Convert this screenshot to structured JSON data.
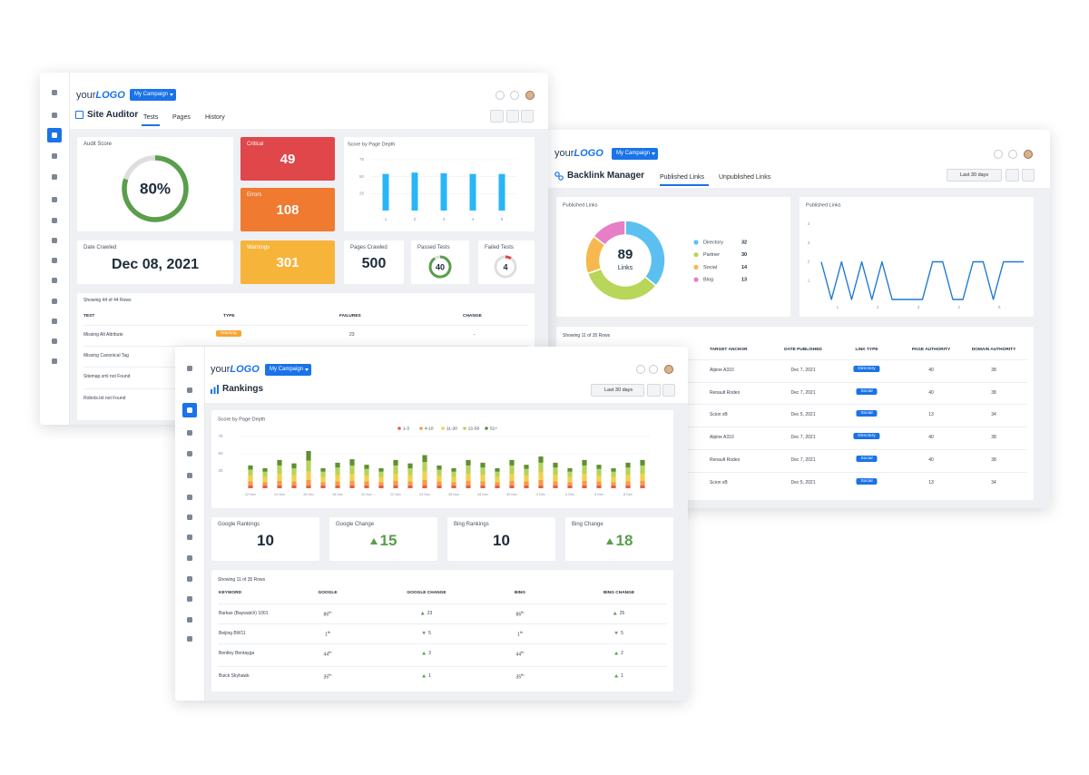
{
  "app": {
    "logo_prefix": "your",
    "logo_brand": "LOGO",
    "campaign": "My Campaign"
  },
  "site_auditor": {
    "title": "Site Auditor",
    "tabs": [
      "Tests",
      "Pages",
      "History"
    ],
    "audit_score": {
      "label": "Audit Score",
      "value": 80,
      "value_label": "80%"
    },
    "critical": {
      "label": "Critical",
      "value": 49
    },
    "errors": {
      "label": "Errors",
      "value": 108
    },
    "warnings": {
      "label": "Warnings",
      "value": 301
    },
    "date_crawled": {
      "label": "Date Crawled",
      "value": "Dec 08, 2021"
    },
    "pages_crawled": {
      "label": "Pages Crawled",
      "value": 500
    },
    "passed_tests": {
      "label": "Passed Tests",
      "value": 40
    },
    "failed_tests": {
      "label": "Failed Tests",
      "value": 4
    },
    "table": {
      "caption": "Showing 44 of 44 Rows",
      "columns": [
        "TEST",
        "TYPE",
        "FAILURES",
        "CHANGE"
      ],
      "rows": [
        {
          "test": "Missing Alt Attribute",
          "type": "Warning",
          "failures": 23,
          "change": "-"
        },
        {
          "test": "Missing Canonical Tag"
        },
        {
          "test": "Sitemap.xml not Found"
        },
        {
          "test": "Robots.txt not Found"
        }
      ]
    }
  },
  "backlink_manager": {
    "title": "Backlink Manager",
    "tabs": [
      "Published Links",
      "Unpublished Links"
    ],
    "date_range": "Last 30 days",
    "table": {
      "caption": "Showing 11 of 35 Rows",
      "columns": [
        "TARGET ANCHOR",
        "DATE PUBLISHED",
        "LINK TYPE",
        "PAGE AUTHORITY",
        "DOMAIN AUTHORITY"
      ],
      "rows": [
        {
          "anchor": "Alpine A310",
          "date": "Dec 7, 2021",
          "type": "Directory",
          "page_authority": 40,
          "domain_authority": 38
        },
        {
          "anchor": "Renault Rodeo",
          "date": "Dec 7, 2021",
          "type": "Social",
          "page_authority": 40,
          "domain_authority": 38
        },
        {
          "anchor": "Scion xB",
          "date": "Dec 5, 2021",
          "type": "Social",
          "page_authority": 13,
          "domain_authority": 34
        },
        {
          "anchor": "Alpine A310",
          "date": "Dec 7, 2021",
          "type": "Directory",
          "page_authority": 40,
          "domain_authority": 38
        },
        {
          "anchor": "Renault Rodeo",
          "date": "Dec 7, 2021",
          "type": "Social",
          "page_authority": 40,
          "domain_authority": 38
        },
        {
          "anchor": "Scion xB",
          "date": "Dec 5, 2021",
          "type": "Social",
          "page_authority": 13,
          "domain_authority": 34
        }
      ]
    }
  },
  "rankings": {
    "title": "Rankings",
    "date_range": "Last 30 days",
    "stats": [
      {
        "label": "Google Rankings",
        "value": 10
      },
      {
        "label": "Google Change",
        "value": 15,
        "trend": "up"
      },
      {
        "label": "Bing Rankings",
        "value": 10
      },
      {
        "label": "Bing Change",
        "value": 18,
        "trend": "up"
      }
    ],
    "table": {
      "caption": "Showing 11 of 35 Rows",
      "columns": [
        "KEYWORD",
        "GOOGLE",
        "GOOGLE CHANGE",
        "BING",
        "BING CHANGE"
      ],
      "rows": [
        {
          "keyword": "Barkas (Baywatch) 1001",
          "google": 86,
          "google_suffix": "th",
          "google_change": 23,
          "google_trend": "up",
          "bing": 86,
          "bing_suffix": "th",
          "bing_change": 25,
          "bing_trend": "up"
        },
        {
          "keyword": "Beijing BW11",
          "google": 1,
          "google_suffix": "th",
          "google_change": 5,
          "google_trend": "down",
          "bing": 1,
          "bing_suffix": "th",
          "bing_change": 5,
          "bing_trend": "down"
        },
        {
          "keyword": "Bentley Bentayga",
          "google": 44,
          "google_suffix": "th",
          "google_change": 3,
          "google_trend": "up",
          "bing": 44,
          "bing_suffix": "th",
          "bing_change": 2,
          "bing_trend": "up"
        },
        {
          "keyword": "Buick Skyhawk",
          "google": 35,
          "google_suffix": "th",
          "google_change": 1,
          "google_trend": "up",
          "bing": 35,
          "bing_suffix": "th",
          "bing_change": 1,
          "bing_trend": "up"
        }
      ]
    }
  },
  "chart_data": [
    {
      "type": "bar",
      "title": "Score by Page Depth",
      "categories": [
        "1",
        "2",
        "3",
        "4",
        "5"
      ],
      "values": [
        54,
        56,
        55,
        54,
        54
      ],
      "color": "#29b6f6",
      "ylim": [
        0,
        75
      ],
      "yticks": [
        25,
        50,
        75
      ],
      "grid": true
    },
    {
      "type": "donut",
      "title": "Published Links",
      "categories": [
        "Directory",
        "Partner",
        "Social",
        "Blog"
      ],
      "values": [
        32,
        30,
        14,
        13
      ],
      "colors": [
        "#5bc0f0",
        "#b8d65a",
        "#f5b94f",
        "#e77fc7"
      ],
      "center_value": 89,
      "center_label": "Links"
    },
    {
      "type": "line",
      "title": "Published Links",
      "x": [
        0.6,
        0.85,
        1.1,
        1.35,
        1.6,
        1.85,
        2.1,
        2.35,
        2.6,
        2.85,
        3.1,
        3.35,
        3.6,
        3.85,
        4.1,
        4.35,
        4.6,
        4.85,
        5.1,
        5.35,
        5.6
      ],
      "values": [
        2,
        0,
        2,
        0,
        2,
        0,
        2,
        0,
        0,
        0,
        0,
        2,
        2,
        0,
        0,
        2,
        2,
        0,
        2,
        2,
        2
      ],
      "color": "#1f7ad1",
      "xlim": [
        0.6,
        5.6
      ],
      "xticks": [
        1,
        2,
        3,
        4,
        5
      ],
      "ylim": [
        0,
        4
      ],
      "yticks": [
        1,
        2,
        3,
        4
      ],
      "grid": false
    },
    {
      "type": "stacked_bar",
      "title": "Score by Page Depth",
      "categories": [
        "12 Nov",
        null,
        "14 Nov",
        null,
        "16 Nov",
        null,
        "18 Nov",
        null,
        "20 Nov",
        null,
        "22 Nov",
        null,
        "24 Nov",
        null,
        "26 Nov",
        null,
        "28 Nov",
        null,
        "30 Nov",
        null,
        "2 Dec",
        null,
        "4 Dec",
        null,
        "6 Dec",
        null,
        "8 Dec",
        null
      ],
      "series": [
        {
          "name": "1-3",
          "color": "#e95c44",
          "values": [
            4,
            4,
            4,
            4,
            4,
            4,
            4,
            4,
            4,
            4,
            4,
            4,
            4,
            4,
            4,
            4,
            4,
            4,
            4,
            4,
            4,
            4,
            4,
            4,
            4,
            4,
            4,
            4
          ]
        },
        {
          "name": "4-10",
          "color": "#f39c4a",
          "values": [
            6,
            5,
            7,
            6,
            8,
            5,
            6,
            7,
            6,
            5,
            7,
            6,
            8,
            6,
            5,
            7,
            6,
            5,
            7,
            6,
            8,
            6,
            5,
            7,
            6,
            5,
            6,
            7
          ]
        },
        {
          "name": "11-20",
          "color": "#f5cf4a",
          "values": [
            8,
            7,
            10,
            9,
            12,
            7,
            9,
            10,
            8,
            7,
            10,
            9,
            12,
            8,
            7,
            10,
            9,
            7,
            10,
            8,
            11,
            9,
            7,
            10,
            8,
            7,
            9,
            10
          ]
        },
        {
          "name": "21-50",
          "color": "#b7d35a",
          "values": [
            9,
            8,
            12,
            10,
            16,
            8,
            11,
            12,
            10,
            8,
            12,
            10,
            14,
            9,
            8,
            12,
            11,
            8,
            12,
            10,
            14,
            11,
            8,
            12,
            10,
            8,
            11,
            12
          ]
        },
        {
          "name": "51+",
          "color": "#5f8f33",
          "values": [
            6,
            5,
            8,
            7,
            14,
            5,
            7,
            9,
            6,
            5,
            8,
            7,
            10,
            6,
            5,
            8,
            7,
            5,
            8,
            6,
            9,
            7,
            5,
            8,
            6,
            5,
            7,
            8
          ]
        }
      ],
      "ylim": [
        0,
        75
      ],
      "yticks": [
        25,
        50,
        75
      ],
      "grid": true
    }
  ]
}
